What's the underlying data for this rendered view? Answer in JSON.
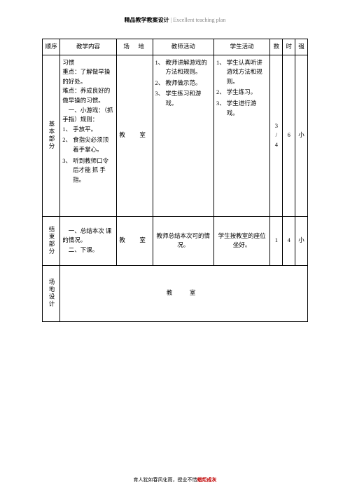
{
  "header": {
    "left": "精品教学教案设计",
    "right": "| Excellent teaching plan"
  },
  "tableHead": {
    "seq": "顺序",
    "content": "教学内容",
    "place": "场　地",
    "teacher": "教师活动",
    "student": "学生活动",
    "c1": "数",
    "c2": "时",
    "c3": "强"
  },
  "row1": {
    "label": "基本部分",
    "content_pre": "习惯\n重点：了解做早操的好处。\n难点：养成良好的做早操的习惯。\n　一、小游戏：（抓手指）规则：",
    "content_items": [
      "手放平。",
      "食指尖必须顶着手掌心。",
      "听到教师口令后才能 抓 手指。"
    ],
    "place": "教　室",
    "teacher_items": [
      "教师讲解游戏的方法和规则。",
      "教师做示范。",
      "学生练习和游戏。"
    ],
    "student_items": [
      "学生认真听讲游戏方法和规则。",
      "学生练习。",
      "学生进行游戏。"
    ],
    "v1a": "3",
    "v1b": "/",
    "v1c": "4",
    "v2": "6",
    "v3": "小"
  },
  "row2": {
    "label": "结束部分",
    "content": "　一、总结本次 课 的情况。\n　二、下课。",
    "place": "教　室",
    "teacher": "教师总结本次可的情况。",
    "student": "学生按教室的座位坐好。",
    "v1": "1",
    "v2": "4",
    "v3": "小"
  },
  "row3": {
    "label": "场地设计",
    "content": "教　室"
  },
  "footer": {
    "a": "育人犹如春风化雨，授业不惜",
    "b": "蜡炬成灰"
  }
}
